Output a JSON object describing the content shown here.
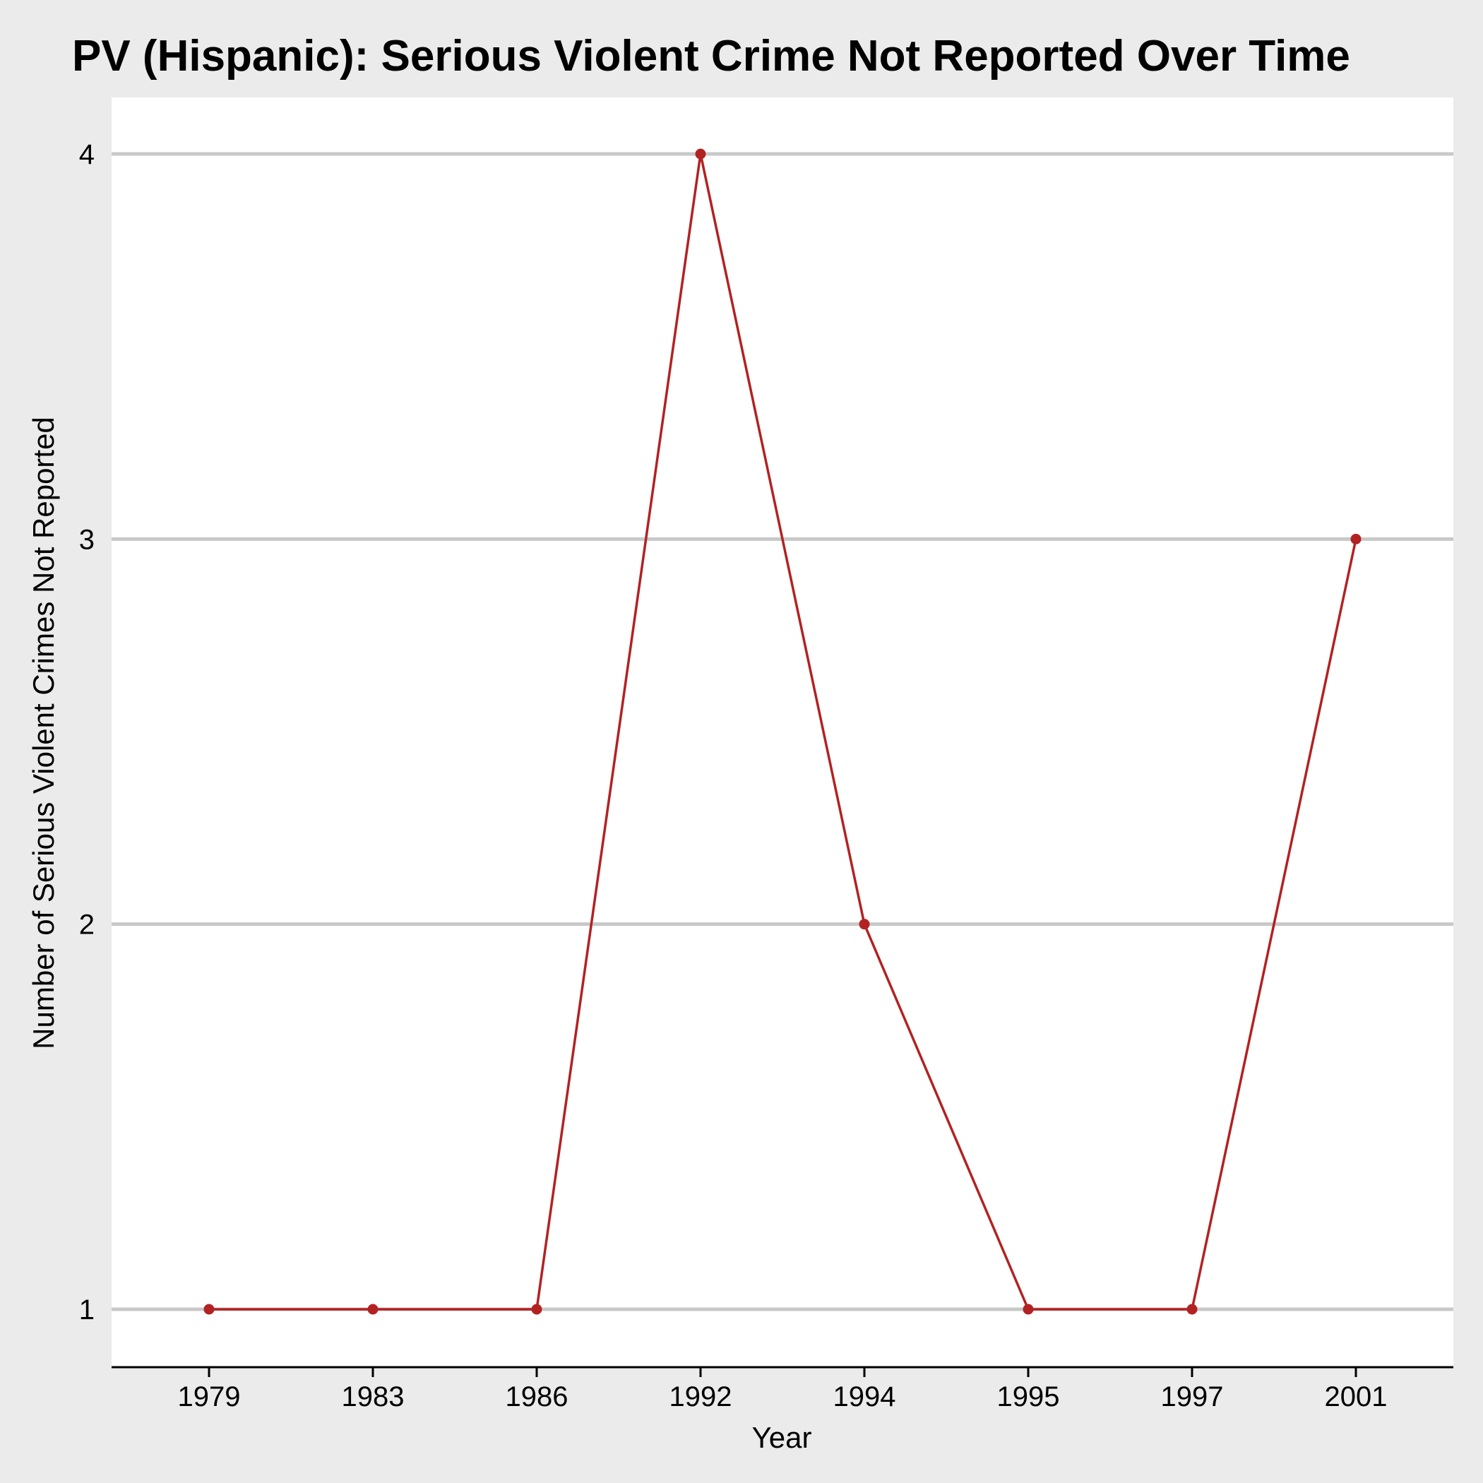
{
  "chart_data": {
    "type": "line",
    "title": "PV (Hispanic): Serious Violent Crime Not Reported Over Time",
    "xlabel": "Year",
    "ylabel": "Number of Serious Violent Crimes Not Reported",
    "categories": [
      "1979",
      "1983",
      "1986",
      "1992",
      "1994",
      "1995",
      "1997",
      "2001"
    ],
    "series": [
      {
        "values": [
          1,
          1,
          1,
          4,
          2,
          1,
          1,
          3
        ]
      }
    ],
    "yticks": [
      1,
      2,
      3,
      4
    ],
    "ylim": [
      0.85,
      4.15
    ],
    "grid": "horizontal",
    "legend": "none",
    "colors": {
      "line": "#b22222",
      "panel_background": "#ffffff",
      "plot_background": "#ebebeb",
      "gridline": "#c8c8c8",
      "axis_line": "#000000"
    }
  }
}
